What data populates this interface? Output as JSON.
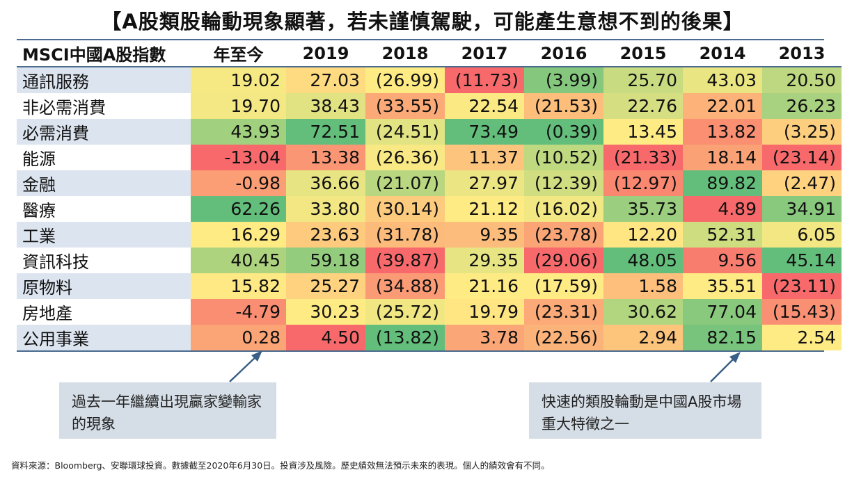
{
  "title": "【A股類股輪動現象顯著，若未謹慎駕駛，可能產生意想不到的後果】",
  "chart_data": {
    "type": "table",
    "header": [
      "MSCI中國A股指數",
      "年至今",
      "2019",
      "2018",
      "2017",
      "2016",
      "2015",
      "2014",
      "2013"
    ],
    "rows": [
      {
        "label": "通訊服務",
        "values": [
          "19.02",
          "27.03",
          "(26.99)",
          "(11.73)",
          "(3.99)",
          "25.70",
          "43.03",
          "20.50"
        ]
      },
      {
        "label": "非必需消費",
        "values": [
          "19.70",
          "38.43",
          "(33.55)",
          "22.54",
          "(21.53)",
          "22.76",
          "22.01",
          "26.23"
        ]
      },
      {
        "label": "必需消費",
        "values": [
          "43.93",
          "72.51",
          "(24.51)",
          "73.49",
          "(0.39)",
          "13.45",
          "13.82",
          "(3.25)"
        ]
      },
      {
        "label": "能源",
        "values": [
          "-13.04",
          "13.38",
          "(26.36)",
          "11.37",
          "(10.52)",
          "(21.33)",
          "18.14",
          "(23.14)"
        ]
      },
      {
        "label": "金融",
        "values": [
          "-0.98",
          "36.66",
          "(21.07)",
          "27.97",
          "(12.39)",
          "(12.97)",
          "89.82",
          "(2.47)"
        ]
      },
      {
        "label": "醫療",
        "values": [
          "62.26",
          "33.80",
          "(30.14)",
          "21.12",
          "(16.02)",
          "35.73",
          "4.89",
          "34.91"
        ]
      },
      {
        "label": "工業",
        "values": [
          "16.29",
          "23.63",
          "(31.78)",
          "9.35",
          "(23.78)",
          "12.20",
          "52.31",
          "6.05"
        ]
      },
      {
        "label": "資訊科技",
        "values": [
          "40.45",
          "59.18",
          "(39.87)",
          "29.35",
          "(29.06)",
          "48.05",
          "9.56",
          "45.14"
        ]
      },
      {
        "label": "原物料",
        "values": [
          "15.82",
          "25.27",
          "(34.88)",
          "21.16",
          "(17.59)",
          "1.58",
          "35.51",
          "(23.11)"
        ]
      },
      {
        "label": "房地產",
        "values": [
          "-4.79",
          "30.23",
          "(25.72)",
          "19.79",
          "(23.31)",
          "30.62",
          "77.04",
          "(15.43)"
        ]
      },
      {
        "label": "公用事業",
        "values": [
          "0.28",
          "4.50",
          "(13.82)",
          "3.78",
          "(22.56)",
          "2.94",
          "82.15",
          "2.54"
        ]
      }
    ],
    "color_scale": {
      "low": "#f8696b",
      "mid": "#ffeb84",
      "high": "#63be7b",
      "scope": "per-column"
    }
  },
  "callouts": {
    "left": "過去一年繼續出現贏家變輸家的現象",
    "right": "快速的類股輪動是中國A股市場重大特徵之一"
  },
  "footer": "資料來源：Bloomberg、安聯環球投資。數據截至2020年6月30日。投資涉及風險。歷史績效無法預示未來的表現。個人的績效會有不同。",
  "colors": {
    "arrow": "#3a5f86",
    "table_rule": "#4a6a8e",
    "row_band": "#dce4ef",
    "callout_bg": "#d5dde6"
  }
}
